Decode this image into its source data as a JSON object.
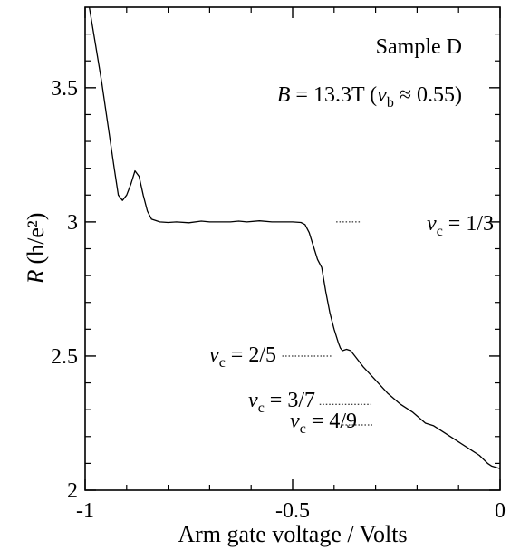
{
  "chart_data": {
    "type": "line",
    "title": "",
    "xlabel": "Arm gate voltage / Volts",
    "ylabel_main": "R",
    "ylabel_unit": "(h/e²)",
    "xlim": [
      -1,
      0
    ],
    "ylim": [
      2,
      3.8
    ],
    "x_ticks": [
      -1,
      -0.5,
      0
    ],
    "x_tick_labels": [
      "-1",
      "-0.5",
      "0"
    ],
    "y_ticks": [
      2,
      2.5,
      3,
      3.5
    ],
    "y_tick_labels": [
      "2",
      "2.5",
      "3",
      "3.5"
    ],
    "grid": false,
    "legend": "none",
    "annotations": {
      "sample": "Sample D",
      "field": "B = 13.3T (νb ≈ 0.55)",
      "field_parts": {
        "b": "B",
        "eq": " = 13.3T (",
        "nu": "ν",
        "sub": "b",
        "rest": " ≈ 0.55)"
      },
      "levels": [
        {
          "nu": "ν",
          "sub": "c",
          "text": " = 1/3",
          "y": 3.0,
          "x_start": -0.395,
          "x_end": -0.335
        },
        {
          "nu": "ν",
          "sub": "c",
          "text": " = 2/5",
          "y": 2.5,
          "x_start": -0.525,
          "x_end": -0.405
        },
        {
          "nu": "ν",
          "sub": "c",
          "text": " = 3/7",
          "y": 2.32,
          "x_start": -0.435,
          "x_end": -0.31
        },
        {
          "nu": "ν",
          "sub": "c",
          "text": " = 4/9",
          "y": 2.243,
          "x_start": -0.38,
          "x_end": -0.305
        }
      ]
    },
    "series": [
      {
        "color": "#000000",
        "x": [
          -0.99,
          -0.975,
          -0.96,
          -0.945,
          -0.93,
          -0.92,
          -0.91,
          -0.9,
          -0.89,
          -0.88,
          -0.87,
          -0.86,
          -0.85,
          -0.84,
          -0.83,
          -0.82,
          -0.8,
          -0.78,
          -0.75,
          -0.72,
          -0.7,
          -0.68,
          -0.65,
          -0.63,
          -0.61,
          -0.58,
          -0.55,
          -0.52,
          -0.5,
          -0.48,
          -0.47,
          -0.46,
          -0.45,
          -0.44,
          -0.43,
          -0.42,
          -0.41,
          -0.4,
          -0.39,
          -0.385,
          -0.38,
          -0.37,
          -0.36,
          -0.35,
          -0.33,
          -0.3,
          -0.27,
          -0.24,
          -0.21,
          -0.18,
          -0.16,
          -0.13,
          -0.1,
          -0.07,
          -0.05,
          -0.03,
          -0.02,
          -0.01,
          0
        ],
        "y": [
          3.8,
          3.66,
          3.52,
          3.36,
          3.2,
          3.1,
          3.08,
          3.1,
          3.14,
          3.19,
          3.17,
          3.1,
          3.04,
          3.01,
          3.005,
          3.0,
          2.998,
          3.0,
          2.997,
          3.003,
          3.0,
          3.0,
          3.0,
          3.003,
          3.0,
          3.004,
          3.0,
          3.0,
          3.0,
          2.998,
          2.99,
          2.96,
          2.91,
          2.86,
          2.83,
          2.74,
          2.66,
          2.6,
          2.55,
          2.53,
          2.52,
          2.525,
          2.52,
          2.5,
          2.46,
          2.41,
          2.36,
          2.32,
          2.29,
          2.25,
          2.24,
          2.21,
          2.18,
          2.15,
          2.13,
          2.1,
          2.09,
          2.085,
          2.08
        ]
      }
    ]
  }
}
